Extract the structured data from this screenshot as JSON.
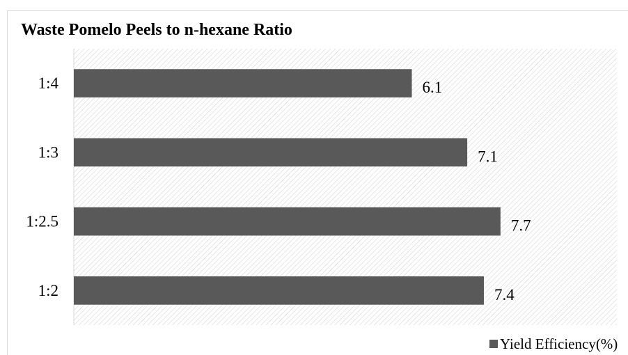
{
  "chart_data": {
    "type": "bar",
    "orientation": "horizontal",
    "title": "Waste Pomelo Peels to n-hexane Ratio",
    "categories": [
      "1:4",
      "1:3",
      "1:2.5",
      "1:2"
    ],
    "series": [
      {
        "name": "Yield Efficiency(%)",
        "values": [
          6.1,
          7.1,
          7.7,
          7.4
        ],
        "color": "#595959"
      }
    ],
    "data_labels": [
      "6.1",
      "7.1",
      "7.7",
      "7.4"
    ],
    "xlim": [
      0,
      9.8
    ],
    "grid": false,
    "legend_position": "bottom-right",
    "plot_background": "diagonal-hatch"
  }
}
